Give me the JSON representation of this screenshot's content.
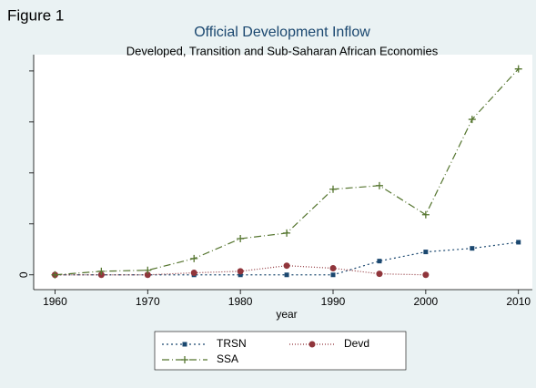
{
  "figure_label": "Figure 1",
  "chart_data": {
    "type": "line",
    "title": "Official Development Inflow",
    "subtitle": "Developed, Transition and Sub-Saharan African Economies",
    "x_label": "year",
    "x": [
      1960,
      1965,
      1970,
      1975,
      1980,
      1985,
      1990,
      1995,
      2000,
      2005,
      2010
    ],
    "xlim": [
      1957.7,
      2011.5
    ],
    "xticks": [
      1960,
      1970,
      1980,
      1990,
      2000,
      2010
    ],
    "ylim": [
      -0.29,
      4.32
    ],
    "yticks": [
      0
    ],
    "ytick_marks": [
      1,
      2,
      3,
      4
    ],
    "grid": false,
    "legend_position": "bottom",
    "series": [
      {
        "name": "TRSN",
        "color": "#1a476f",
        "dash": "2,3",
        "marker": "square",
        "values": [
          0,
          0,
          0,
          0,
          0,
          0,
          0,
          0.27,
          0.45,
          0.52,
          0.64
        ]
      },
      {
        "name": "Devd",
        "color": "#90353b",
        "dash": "1,2",
        "marker": "circle",
        "values": [
          0,
          0,
          0,
          0.04,
          0.07,
          0.18,
          0.13,
          0.02,
          0,
          null,
          null
        ]
      },
      {
        "name": "SSA",
        "color": "#55752f",
        "dash": "8,3,1,3",
        "marker": "plus",
        "values": [
          0,
          0.07,
          0.09,
          0.32,
          0.71,
          0.82,
          1.68,
          1.75,
          1.18,
          3.05,
          4.04
        ]
      }
    ]
  }
}
